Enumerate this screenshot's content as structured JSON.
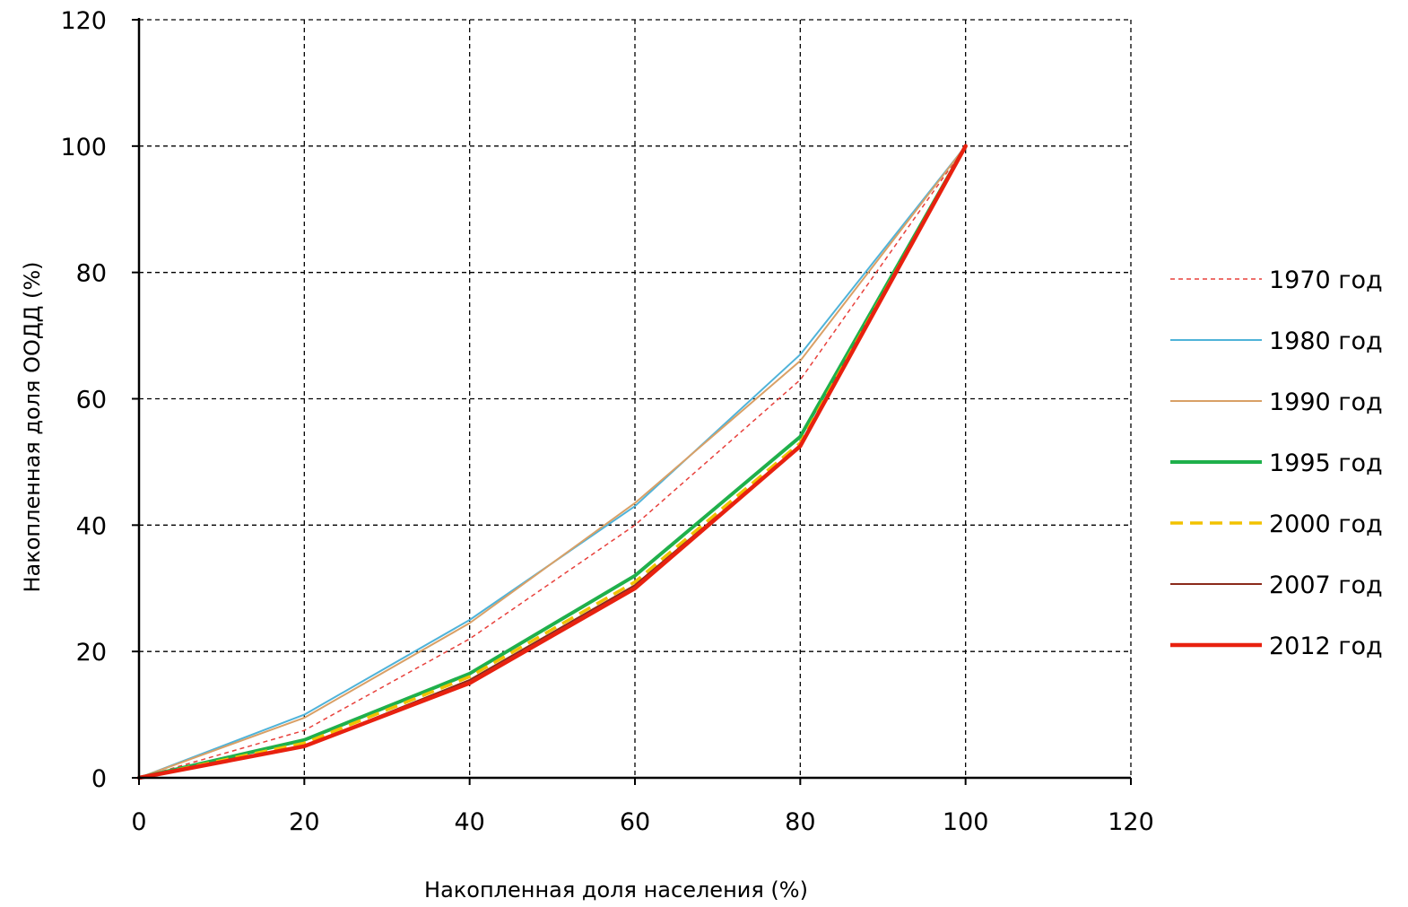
{
  "chart_data": {
    "type": "line",
    "title": "",
    "xlabel": "Накопленная доля населения (%)",
    "ylabel": "Накопленная доля  ООДД (%)",
    "xlim": [
      0,
      120
    ],
    "ylim": [
      0,
      120
    ],
    "xticks": [
      "0",
      "20",
      "40",
      "60",
      "80",
      "100",
      "120"
    ],
    "yticks": [
      "0",
      "20",
      "40",
      "60",
      "80",
      "100",
      "120"
    ],
    "grid": true,
    "grid_style": "dashed",
    "legend_position": "right",
    "x": [
      0,
      20,
      40,
      60,
      80,
      100
    ],
    "series": [
      {
        "name": "1970 год",
        "values": [
          0,
          7.5,
          22,
          40,
          63,
          100
        ],
        "color": "#e8413c",
        "width": 1.5,
        "dash": "5,4"
      },
      {
        "name": "1980 год",
        "values": [
          0,
          10,
          25,
          43,
          67,
          100
        ],
        "color": "#4fb3d9",
        "width": 2,
        "dash": ""
      },
      {
        "name": "1990 год",
        "values": [
          0,
          9.5,
          24.5,
          43.5,
          66,
          100
        ],
        "color": "#d9a066",
        "width": 2,
        "dash": ""
      },
      {
        "name": "1995 год",
        "values": [
          0,
          6,
          16.5,
          32,
          54,
          100
        ],
        "color": "#1fb04b",
        "width": 4,
        "dash": ""
      },
      {
        "name": "2000 год",
        "values": [
          0,
          5.5,
          16,
          31,
          53,
          100
        ],
        "color": "#f2c200",
        "width": 3.5,
        "dash": "14,8"
      },
      {
        "name": "2007 год",
        "values": [
          0,
          5,
          15.5,
          30.5,
          52.5,
          100
        ],
        "color": "#8b2a1a",
        "width": 2,
        "dash": ""
      },
      {
        "name": "2012 год",
        "values": [
          0,
          5,
          15,
          30,
          52.5,
          100
        ],
        "color": "#e8210f",
        "width": 4.5,
        "dash": ""
      }
    ]
  }
}
